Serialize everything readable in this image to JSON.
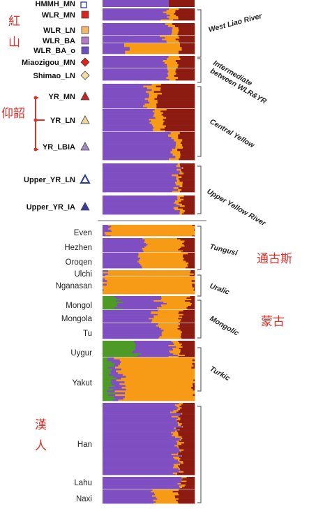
{
  "colors": {
    "purple": "#7f4fc2",
    "orange": "#f79a16",
    "darkred": "#8c1b12",
    "green": "#4e9a27",
    "annotation_red": "#e0302a"
  },
  "chart_data": {
    "type": "stacked-bar",
    "orientation": "horizontal",
    "components": [
      "purple",
      "orange",
      "darkred",
      "green"
    ],
    "populations_ancient": [
      {
        "label": "WLR_MN",
        "marker": "square",
        "marker_color": "#d9251d",
        "rows": 8,
        "purple": 0.7,
        "orange": 0.1,
        "darkred": 0.2,
        "green": 0.0
      },
      {
        "label": "WLR_LN",
        "marker": "square",
        "marker_color": "#f2b86a",
        "rows": 6,
        "purple": 0.72,
        "orange": 0.08,
        "darkred": 0.2,
        "green": 0.0
      },
      {
        "label": "WLR_BA",
        "marker": "square",
        "marker_color": "#b07bc9",
        "rows": 5,
        "purple": 0.65,
        "orange": 0.16,
        "darkred": 0.19,
        "green": 0.0
      },
      {
        "label": "WLR_BA_o",
        "marker": "square",
        "marker_color": "#6a4fc0",
        "rows": 3,
        "purple": 0.25,
        "orange": 0.6,
        "darkred": 0.15,
        "green": 0.0
      },
      {
        "label": "Miaozigou_MN",
        "marker": "diamond",
        "marker_color": "#d9251d",
        "rows": 6,
        "purple": 0.7,
        "orange": 0.12,
        "darkred": 0.18,
        "green": 0.0
      },
      {
        "label": "Shimao_LN",
        "marker": "diamond",
        "marker_color": "#f5dca0",
        "rows": 6,
        "purple": 0.72,
        "orange": 0.1,
        "darkred": 0.18,
        "green": 0.0
      },
      {
        "label": "YR_MN",
        "marker": "triangle",
        "marker_color": "#c22525",
        "rows": 14,
        "purple": 0.48,
        "orange": 0.12,
        "darkred": 0.4,
        "green": 0.0
      },
      {
        "label": "YR_LN",
        "marker": "triangle",
        "marker_color": "#f0d49a",
        "rows": 14,
        "purple": 0.55,
        "orange": 0.12,
        "darkred": 0.33,
        "green": 0.0
      },
      {
        "label": "YR_LBIA",
        "marker": "triangle",
        "marker_color": "#a58bc9",
        "rows": 12,
        "purple": 0.75,
        "orange": 0.08,
        "darkred": 0.17,
        "green": 0.0
      },
      {
        "label": "Upper_YR_LN",
        "marker": "triangle-outline",
        "marker_color": "#2a3a9a",
        "rows": 16,
        "purple": 0.8,
        "orange": 0.05,
        "darkred": 0.15,
        "green": 0.0
      },
      {
        "label": "Upper_YR_IA",
        "marker": "triangle",
        "marker_color": "#3a3a9a",
        "rows": 12,
        "purple": 0.8,
        "orange": 0.06,
        "darkred": 0.14,
        "green": 0.0
      }
    ],
    "populations_modern": [
      {
        "label": "Even",
        "rows": 10,
        "purple": 0.08,
        "orange": 0.92,
        "darkred": 0.0,
        "green": 0.0
      },
      {
        "label": "Hezhen",
        "rows": 12,
        "purple": 0.45,
        "orange": 0.4,
        "darkred": 0.15,
        "green": 0.0
      },
      {
        "label": "Oroqen",
        "rows": 10,
        "purple": 0.4,
        "orange": 0.5,
        "darkred": 0.1,
        "green": 0.0
      },
      {
        "label": "Ulchi",
        "rows": 4,
        "purple": 0.03,
        "orange": 0.92,
        "darkred": 0.05,
        "green": 0.0
      },
      {
        "label": "Nganasan",
        "rows": 10,
        "purple": 0.0,
        "orange": 1.0,
        "darkred": 0.0,
        "green": 0.0
      },
      {
        "label": "Mongol",
        "rows": 10,
        "purple": 0.45,
        "orange": 0.3,
        "darkred": 0.07,
        "green": 0.18
      },
      {
        "label": "Mongola",
        "rows": 10,
        "purple": 0.55,
        "orange": 0.3,
        "darkred": 0.15,
        "green": 0.0
      },
      {
        "label": "Tu",
        "rows": 10,
        "purple": 0.62,
        "orange": 0.22,
        "darkred": 0.16,
        "green": 0.0
      },
      {
        "label": "Uygur",
        "rows": 12,
        "purple": 0.4,
        "orange": 0.1,
        "darkred": 0.15,
        "green": 0.35
      },
      {
        "label": "Yakut",
        "rows": 24,
        "purple": 0.1,
        "orange": 0.8,
        "darkred": 0.0,
        "green": 0.1
      },
      {
        "label": "Han",
        "rows": 50,
        "purple": 0.8,
        "orange": 0.04,
        "darkred": 0.16,
        "green": 0.0
      },
      {
        "label": "Lahu",
        "rows": 10,
        "purple": 0.86,
        "orange": 0.02,
        "darkred": 0.12,
        "green": 0.0
      },
      {
        "label": "Naxi",
        "rows": 10,
        "purple": 0.55,
        "orange": 0.25,
        "darkred": 0.2,
        "green": 0.0
      }
    ],
    "group_labels": [
      {
        "text": "West Liao River"
      },
      {
        "text": "Intermediate between WLR&YR"
      },
      {
        "text": "Central Yellow"
      },
      {
        "text": "Upper Yellow River"
      },
      {
        "text": "Tungusi"
      },
      {
        "text": "Uralic"
      },
      {
        "text": "Mongolic"
      },
      {
        "text": "Turkic"
      }
    ],
    "annotations": [
      {
        "text": "紅山"
      },
      {
        "text": "仰韶"
      },
      {
        "text": "通古斯"
      },
      {
        "text": "蒙古"
      },
      {
        "text": "漢人"
      }
    ],
    "top_cut_label": "HMMH_MN"
  }
}
